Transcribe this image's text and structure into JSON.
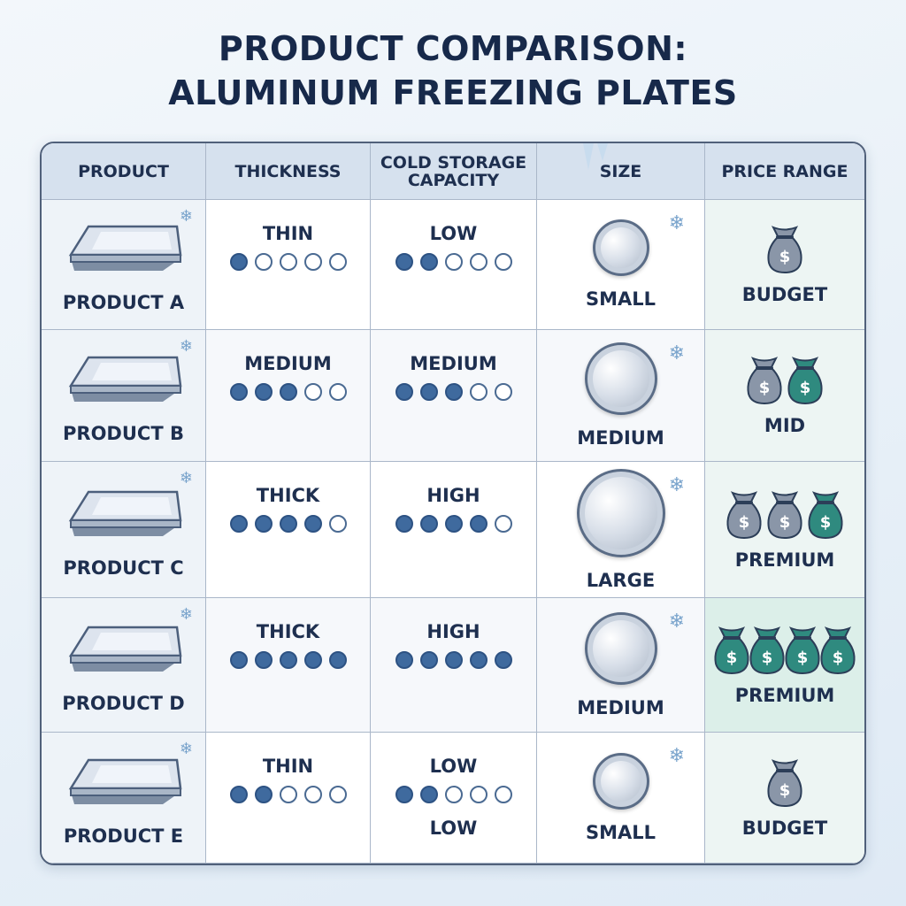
{
  "title": {
    "line1": "PRODUCT COMPARISON:",
    "line2": "ALUMINUM FREEZING PLATES"
  },
  "headers": {
    "product": "PRODUCT",
    "thickness": "THICKNESS",
    "capacity_1": "COLD STORAGE",
    "capacity_2": "CAPACITY",
    "size": "SIZE",
    "price": "PRICE RANGE"
  },
  "rows": [
    {
      "name": "PRODUCT A",
      "thickness": "THIN",
      "thickness_level": 1,
      "capacity": "LOW",
      "capacity_level": 2,
      "capacity_extra": "",
      "size": "SMALL",
      "price": "BUDGET",
      "bags": 1
    },
    {
      "name": "PRODUCT B",
      "thickness": "MEDIUM",
      "thickness_level": 3,
      "capacity": "MEDIUM",
      "capacity_level": 3,
      "capacity_extra": "",
      "size": "MEDIUM",
      "price": "MID",
      "bags": 2
    },
    {
      "name": "PRODUCT C",
      "thickness": "THICK",
      "thickness_level": 4,
      "capacity": "HIGH",
      "capacity_level": 4,
      "capacity_extra": "",
      "size": "LARGE",
      "price": "PREMIUM",
      "bags": 3
    },
    {
      "name": "PRODUCT D",
      "thickness": "THICK",
      "thickness_level": 5,
      "capacity": "HIGH",
      "capacity_level": 5,
      "capacity_extra": "",
      "size": "MEDIUM",
      "price": "PREMIUM",
      "bags": 4
    },
    {
      "name": "PRODUCT E",
      "thickness": "THIN",
      "thickness_level": 2,
      "capacity": "LOW",
      "capacity_level": 2,
      "capacity_extra": "LOW",
      "size": "SMALL",
      "price": "BUDGET",
      "bags": 1
    }
  ],
  "colors": {
    "dot_filled": "#3f6a9e",
    "bag_gray": "#8a96a8",
    "bag_teal": "#2f8a7f",
    "dollar": "#ffffff"
  },
  "icons": {
    "product": "aluminum-plate-icon",
    "size": "metal-disc-icon",
    "price": "money-bag-icon",
    "decor": "snowflake-icon"
  }
}
